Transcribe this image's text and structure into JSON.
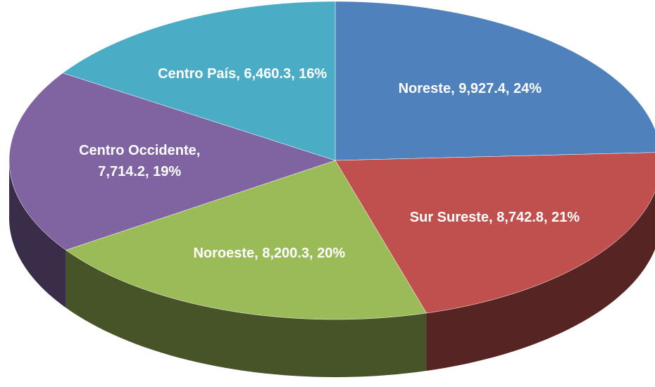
{
  "chart_data": {
    "type": "pie",
    "three_d": true,
    "values": [
      9927.4,
      8742.8,
      8200.3,
      7714.2,
      6460.3
    ],
    "value_labels": [
      "Noreste, 9,927.4, 24%",
      "Sur Sureste, 8,742.8, 21%",
      "Noroeste, 8,200.3, 20%",
      "Centro Occidente, 7,714.2, 19%",
      "Centro País, 6,460.3, 16%"
    ],
    "colors": [
      "#4f81bd",
      "#c0504d",
      "#9bbb59",
      "#8064a2",
      "#4bacc6"
    ],
    "start_angle": -90,
    "direction": "clockwise"
  }
}
